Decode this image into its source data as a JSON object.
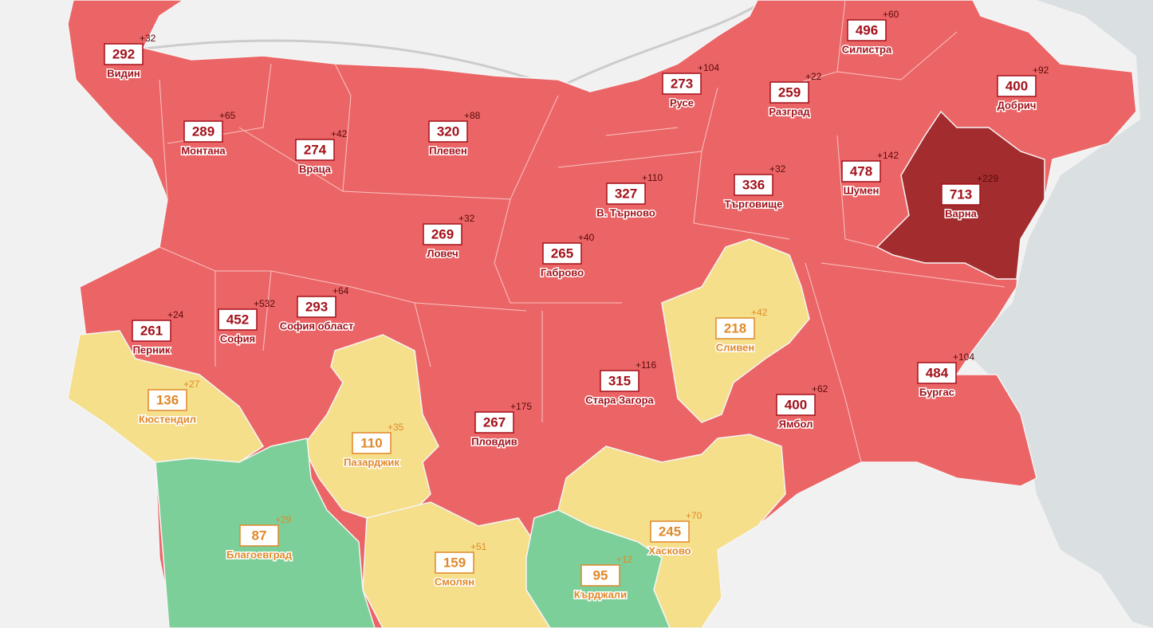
{
  "regions": [
    {
      "name": "Видин",
      "value": 292,
      "delta": "+32",
      "color": "#ec6566"
    },
    {
      "name": "Монтана",
      "value": 289,
      "delta": "+65",
      "color": "#ec6566"
    },
    {
      "name": "Враца",
      "value": 274,
      "delta": "+42",
      "color": "#ec6566"
    },
    {
      "name": "Плевен",
      "value": 320,
      "delta": "+88",
      "color": "#ec6566"
    },
    {
      "name": "Русе",
      "value": 273,
      "delta": "+104",
      "color": "#ec6566"
    },
    {
      "name": "Разград",
      "value": 259,
      "delta": "+22",
      "color": "#ec6566"
    },
    {
      "name": "Силистра",
      "value": 496,
      "delta": "+60",
      "color": "#ec6566"
    },
    {
      "name": "Добрич",
      "value": 400,
      "delta": "+92",
      "color": "#ec6566"
    },
    {
      "name": "Шумен",
      "value": 478,
      "delta": "+142",
      "color": "#ec6566"
    },
    {
      "name": "Търговище",
      "value": 336,
      "delta": "+32",
      "color": "#ec6566"
    },
    {
      "name": "В. Търново",
      "value": 327,
      "delta": "+110",
      "color": "#ec6566"
    },
    {
      "name": "Варна",
      "value": 713,
      "delta": "+229",
      "color": "#a32c2e"
    },
    {
      "name": "Ловеч",
      "value": 269,
      "delta": "+32",
      "color": "#ec6566"
    },
    {
      "name": "Габрово",
      "value": 265,
      "delta": "+40",
      "color": "#ec6566"
    },
    {
      "name": "Перник",
      "value": 261,
      "delta": "+24",
      "color": "#ec6566"
    },
    {
      "name": "София",
      "value": 452,
      "delta": "+532",
      "color": "#ec6566"
    },
    {
      "name": "София област",
      "value": 293,
      "delta": "+64",
      "color": "#ec6566"
    },
    {
      "name": "Сливен",
      "value": 218,
      "delta": "+42",
      "color": "#f5df8a"
    },
    {
      "name": "Кюстендил",
      "value": 136,
      "delta": "+27",
      "color": "#f5df8a"
    },
    {
      "name": "Стара Загора",
      "value": 315,
      "delta": "+116",
      "color": "#ec6566"
    },
    {
      "name": "Бургас",
      "value": 484,
      "delta": "+104",
      "color": "#ec6566"
    },
    {
      "name": "Ямбол",
      "value": 400,
      "delta": "+62",
      "color": "#ec6566"
    },
    {
      "name": "Пловдив",
      "value": 267,
      "delta": "+175",
      "color": "#ec6566"
    },
    {
      "name": "Пазарджик",
      "value": 110,
      "delta": "+35",
      "color": "#f5df8a"
    },
    {
      "name": "Благоевград",
      "value": 87,
      "delta": "+29",
      "color": "#7ccf98"
    },
    {
      "name": "Хасково",
      "value": 245,
      "delta": "+70",
      "color": "#f5df8a"
    },
    {
      "name": "Смолян",
      "value": 159,
      "delta": "+51",
      "color": "#f5df8a"
    },
    {
      "name": "Кърджали",
      "value": 95,
      "delta": "+12",
      "color": "#7ccf98"
    }
  ]
}
